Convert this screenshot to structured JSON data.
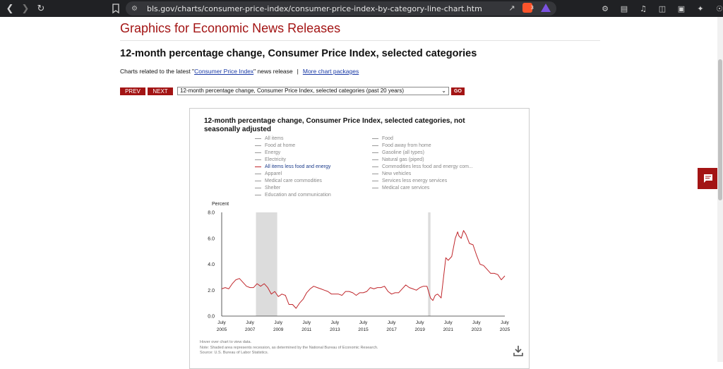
{
  "browser": {
    "url": "bls.gov/charts/consumer-price-index/consumer-price-index-by-category-line-chart.htm",
    "extension_badge": "3"
  },
  "page": {
    "site_title": "Graphics for Economic News Releases",
    "page_title": "12-month percentage change, Consumer Price Index, selected categories",
    "related_prefix": "Charts related to the latest \"",
    "related_link": "Consumer Price Index",
    "related_suffix": "\" news release",
    "related_sep": "|",
    "more_link": "More chart packages",
    "prev_label": "PREV",
    "next_label": "NEXT",
    "select_value": "12-month percentage change, Consumer Price Index, selected categories (past 20 years)",
    "go_label": "GO"
  },
  "chart_box": {
    "title": "12-month percentage change, Consumer Price Index, selected categories, not seasonally adjusted",
    "legend_left": [
      "All items",
      "Food at home",
      "Energy",
      "Electricity",
      "All items less food and energy",
      "Apparel",
      "Medical care commodities",
      "Shelter",
      "Education and communication"
    ],
    "legend_right": [
      "Food",
      "Food away from home",
      "Gasoline (all types)",
      "Natural gas (piped)",
      "Commodities less food and energy com...",
      "New vehicles",
      "Services less energy services",
      "Medical care services"
    ],
    "active_legend": "All items less food and energy",
    "footnote_1": "Hover over chart to view data.",
    "footnote_2": "Note: Shaded area represents recession, as determined by the National Bureau of Economic Research.",
    "footnote_3": "Source: U.S. Bureau of Labor Statistics."
  },
  "chart_data": {
    "type": "line",
    "ylabel": "Percent",
    "ylim": [
      0,
      8
    ],
    "yticks": [
      "0.0",
      "2.0",
      "4.0",
      "6.0",
      "8.0"
    ],
    "xlim": [
      2005.5,
      2025.5
    ],
    "xticks": [
      {
        "x": 2005.5,
        "month": "July",
        "year": "2005"
      },
      {
        "x": 2007.5,
        "month": "July",
        "year": "2007"
      },
      {
        "x": 2009.5,
        "month": "July",
        "year": "2009"
      },
      {
        "x": 2011.5,
        "month": "July",
        "year": "2011"
      },
      {
        "x": 2013.5,
        "month": "July",
        "year": "2013"
      },
      {
        "x": 2015.5,
        "month": "July",
        "year": "2015"
      },
      {
        "x": 2017.5,
        "month": "July",
        "year": "2017"
      },
      {
        "x": 2019.5,
        "month": "July",
        "year": "2019"
      },
      {
        "x": 2021.5,
        "month": "July",
        "year": "2021"
      },
      {
        "x": 2023.5,
        "month": "July",
        "year": "2023"
      },
      {
        "x": 2025.5,
        "month": "July",
        "year": "2025"
      }
    ],
    "recessions": [
      [
        2007.92,
        2009.42
      ],
      [
        2020.08,
        2020.25
      ]
    ],
    "series": [
      {
        "name": "All items less food and energy",
        "color": "#c0262b",
        "x": [
          2005.5,
          2005.75,
          2006.0,
          2006.25,
          2006.5,
          2006.75,
          2007.0,
          2007.25,
          2007.5,
          2007.75,
          2008.0,
          2008.25,
          2008.5,
          2008.75,
          2009.0,
          2009.25,
          2009.5,
          2009.75,
          2010.0,
          2010.25,
          2010.5,
          2010.75,
          2011.0,
          2011.25,
          2011.5,
          2011.75,
          2012.0,
          2012.25,
          2012.5,
          2012.75,
          2013.0,
          2013.25,
          2013.5,
          2013.75,
          2014.0,
          2014.25,
          2014.5,
          2014.75,
          2015.0,
          2015.25,
          2015.5,
          2015.75,
          2016.0,
          2016.25,
          2016.5,
          2016.75,
          2017.0,
          2017.25,
          2017.5,
          2017.75,
          2018.0,
          2018.25,
          2018.5,
          2018.75,
          2019.0,
          2019.25,
          2019.5,
          2019.75,
          2020.0,
          2020.25,
          2020.42,
          2020.58,
          2020.75,
          2021.0,
          2021.17,
          2021.33,
          2021.5,
          2021.75,
          2022.0,
          2022.17,
          2022.25,
          2022.42,
          2022.58,
          2022.75,
          2023.0,
          2023.25,
          2023.5,
          2023.75,
          2024.0,
          2024.25,
          2024.5,
          2024.75,
          2025.0,
          2025.25,
          2025.5
        ],
        "y": [
          2.1,
          2.2,
          2.1,
          2.5,
          2.8,
          2.9,
          2.6,
          2.3,
          2.2,
          2.2,
          2.5,
          2.3,
          2.5,
          2.2,
          1.7,
          1.9,
          1.5,
          1.7,
          1.6,
          0.9,
          0.9,
          0.6,
          1.0,
          1.3,
          1.8,
          2.1,
          2.3,
          2.2,
          2.1,
          2.0,
          1.9,
          1.7,
          1.7,
          1.7,
          1.6,
          1.9,
          1.9,
          1.8,
          1.6,
          1.8,
          1.8,
          1.9,
          2.2,
          2.1,
          2.2,
          2.2,
          2.3,
          1.9,
          1.7,
          1.8,
          1.8,
          2.1,
          2.4,
          2.2,
          2.1,
          2.0,
          2.2,
          2.3,
          2.3,
          1.4,
          1.2,
          1.6,
          1.7,
          1.4,
          3.0,
          4.5,
          4.3,
          4.6,
          6.0,
          6.5,
          6.2,
          6.0,
          6.6,
          6.3,
          5.6,
          5.5,
          4.7,
          4.0,
          3.9,
          3.6,
          3.3,
          3.3,
          3.2,
          2.8,
          3.1
        ]
      }
    ]
  }
}
